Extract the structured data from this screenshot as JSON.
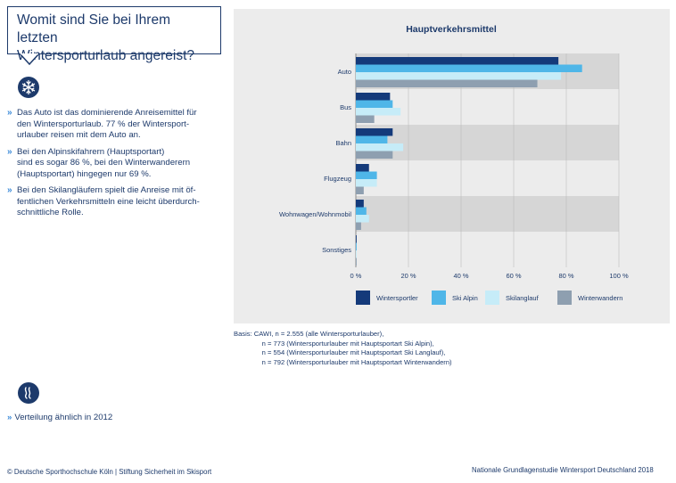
{
  "question": {
    "line1": "Womit sind Sie bei Ihrem letzten",
    "line2": "Wintersporturlaub angereist?"
  },
  "bullets": [
    {
      "marker": "»",
      "lines": [
        "Das Auto ist das dominierende Anreisemittel für",
        "den Wintersporturlaub. 77 % der Wintersport-",
        "urlauber reisen mit dem Auto an."
      ]
    },
    {
      "marker": "»",
      "lines": [
        "Bei den Alpinskifahrern (Hauptsportart)",
        "sind es sogar 86 %, bei den Winterwanderern",
        "(Hauptsportart) hingegen nur 69 %."
      ]
    },
    {
      "marker": "»",
      "lines": [
        "Bei den Skilangläufern spielt die Anreise mit öf-",
        "fentlichen Verkehrsmitteln eine leicht überdurch-",
        "schnittliche Rolle."
      ]
    }
  ],
  "note": {
    "marker": "»",
    "text": "Verteilung ähnlich in 2012"
  },
  "icons": {
    "top": "snowflake-icon",
    "bottom": "wind-waves-icon"
  },
  "basis": [
    "Basis: CAWI, n = 2.555 (alle Wintersporturlauber),",
    "               n = 773 (Wintersporturlauber mit Hauptsportart Ski Alpin),",
    "               n = 554 (Wintersporturlauber mit Hauptsportart Ski Langlauf),",
    "               n = 792 (Wintersporturlauber mit Hauptsportart Winterwandern)"
  ],
  "footer": {
    "left": "© Deutsche Sporthochschule Köln  |  Stiftung Sicherheit im Skisport",
    "right": "Nationale Grundlagenstudie Wintersport Deutschland 2018"
  },
  "colors": {
    "navy": "#1d3a6b",
    "accent": "#3b8ad9",
    "band": "#d6d6d6",
    "panel": "#ececec"
  },
  "chart_data": {
    "type": "bar",
    "orientation": "horizontal",
    "title": "Hauptverkehrsmittel",
    "categories": [
      "Auto",
      "Bus",
      "Bahn",
      "Flugzeug",
      "Wohnwagen/Wohnmobil",
      "Sonstiges"
    ],
    "series": [
      {
        "name": "Wintersportler",
        "color": "#143a7a",
        "values": [
          77,
          13,
          14,
          5,
          3,
          0.3
        ]
      },
      {
        "name": "Ski Alpin",
        "color": "#4fb6e8",
        "values": [
          86,
          14,
          12,
          8,
          4,
          0.3
        ]
      },
      {
        "name": "Skilanglauf",
        "color": "#c6ecf8",
        "values": [
          78,
          17,
          18,
          8,
          5,
          0.3
        ]
      },
      {
        "name": "Winterwandern",
        "color": "#8e9fb0",
        "values": [
          69,
          7,
          14,
          3,
          2,
          0.3
        ]
      }
    ],
    "xlim": [
      0,
      100
    ],
    "xticks": [
      "0 %",
      "20 %",
      "40 %",
      "60 %",
      "80 %",
      "100 %"
    ],
    "grid": true,
    "legend": "bottom"
  }
}
